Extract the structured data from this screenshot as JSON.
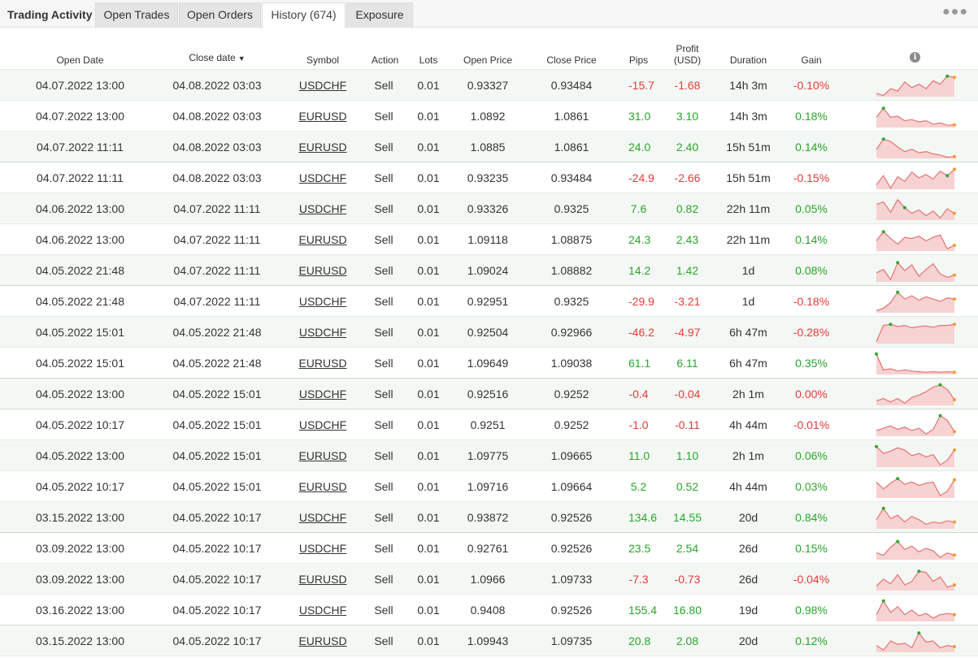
{
  "app_title": "Trading Activity",
  "tabs": [
    {
      "label": "Open Trades",
      "active": false
    },
    {
      "label": "Open Orders",
      "active": false
    },
    {
      "label": "History (674)",
      "active": true
    },
    {
      "label": "Exposure",
      "active": false
    }
  ],
  "menu_icon": "more-dots-icon",
  "columns": {
    "open_date": "Open Date",
    "close_date": "Close date",
    "close_date_sort": "▼",
    "symbol": "Symbol",
    "action": "Action",
    "lots": "Lots",
    "open_price": "Open Price",
    "close_price": "Close Price",
    "pips": "Pips",
    "profit_l1": "Profit",
    "profit_l2": "(USD)",
    "duration": "Duration",
    "gain": "Gain",
    "info": "i"
  },
  "colors": {
    "negative": "#e23b3b",
    "positive": "#2aa52a",
    "spark_line": "#e57373",
    "spark_fill": "#f6d2d2",
    "spark_start": "#2eaa2e",
    "spark_end": "#f29a2e"
  },
  "rows": [
    {
      "open": "04.07.2022 13:00",
      "close": "04.08.2022 03:03",
      "symbol": "USDCHF",
      "action": "Sell",
      "lots": "0.01",
      "open_price": "0.93327",
      "close_price": "0.93484",
      "pips": "-15.7",
      "profit": "-1.68",
      "duration": "14h 3m",
      "gain": "-0.10%",
      "spark": [
        0.15,
        0.05,
        0.35,
        0.25,
        0.65,
        0.4,
        0.55,
        0.35,
        0.7,
        0.55,
        0.9,
        0.85
      ],
      "spark_start": 10,
      "spark_end": 11
    },
    {
      "open": "04.07.2022 13:00",
      "close": "04.08.2022 03:03",
      "symbol": "EURUSD",
      "action": "Sell",
      "lots": "0.01",
      "open_price": "1.0892",
      "close_price": "1.0861",
      "pips": "31.0",
      "profit": "3.10",
      "duration": "14h 3m",
      "gain": "0.18%",
      "spark": [
        0.45,
        0.85,
        0.45,
        0.5,
        0.3,
        0.35,
        0.25,
        0.3,
        0.15,
        0.2,
        0.1,
        0.12
      ],
      "spark_start": 1,
      "spark_end": 11
    },
    {
      "open": "04.07.2022 11:11",
      "close": "04.08.2022 03:03",
      "symbol": "EURUSD",
      "action": "Sell",
      "lots": "0.01",
      "open_price": "1.0885",
      "close_price": "1.0861",
      "pips": "24.0",
      "profit": "2.40",
      "duration": "15h 51m",
      "gain": "0.14%",
      "spark": [
        0.4,
        0.85,
        0.75,
        0.5,
        0.3,
        0.4,
        0.25,
        0.3,
        0.2,
        0.15,
        0.05,
        0.08
      ],
      "spark_start": 1,
      "spark_end": 11
    },
    {
      "open": "04.07.2022 11:11",
      "close": "04.08.2022 03:03",
      "symbol": "USDCHF",
      "action": "Sell",
      "lots": "0.01",
      "open_price": "0.93235",
      "close_price": "0.93484",
      "pips": "-24.9",
      "profit": "-2.66",
      "duration": "15h 51m",
      "gain": "-0.15%",
      "spark": [
        0.2,
        0.6,
        0.05,
        0.55,
        0.35,
        0.75,
        0.5,
        0.65,
        0.45,
        0.8,
        0.6,
        0.88
      ],
      "spark_start": 10,
      "spark_end": 11
    },
    {
      "open": "04.06.2022 13:00",
      "close": "04.07.2022 11:11",
      "symbol": "USDCHF",
      "action": "Sell",
      "lots": "0.01",
      "open_price": "0.93326",
      "close_price": "0.9325",
      "pips": "7.6",
      "profit": "0.82",
      "duration": "22h 11m",
      "gain": "0.05%",
      "spark": [
        0.7,
        0.8,
        0.35,
        0.9,
        0.55,
        0.3,
        0.45,
        0.2,
        0.4,
        0.1,
        0.5,
        0.3
      ],
      "spark_start": 4,
      "spark_end": 11
    },
    {
      "open": "04.06.2022 13:00",
      "close": "04.07.2022 11:11",
      "symbol": "EURUSD",
      "action": "Sell",
      "lots": "0.01",
      "open_price": "1.09118",
      "close_price": "1.08875",
      "pips": "24.3",
      "profit": "2.43",
      "duration": "22h 11m",
      "gain": "0.14%",
      "spark": [
        0.45,
        0.85,
        0.55,
        0.3,
        0.6,
        0.55,
        0.65,
        0.45,
        0.6,
        0.7,
        0.1,
        0.25
      ],
      "spark_start": 1,
      "spark_end": 11
    },
    {
      "open": "04.05.2022 21:48",
      "close": "04.07.2022 11:11",
      "symbol": "EURUSD",
      "action": "Sell",
      "lots": "0.01",
      "open_price": "1.09024",
      "close_price": "1.08882",
      "pips": "14.2",
      "profit": "1.42",
      "duration": "1d",
      "gain": "0.08%",
      "spark": [
        0.4,
        0.55,
        0.1,
        0.85,
        0.5,
        0.75,
        0.25,
        0.55,
        0.8,
        0.35,
        0.2,
        0.3
      ],
      "spark_start": 3,
      "spark_end": 11
    },
    {
      "open": "04.05.2022 21:48",
      "close": "04.07.2022 11:11",
      "symbol": "USDCHF",
      "action": "Sell",
      "lots": "0.01",
      "open_price": "0.92951",
      "close_price": "0.9325",
      "pips": "-29.9",
      "profit": "-3.21",
      "duration": "1d",
      "gain": "-0.18%",
      "spark": [
        0.1,
        0.2,
        0.45,
        0.9,
        0.6,
        0.75,
        0.55,
        0.7,
        0.6,
        0.5,
        0.65,
        0.6
      ],
      "spark_start": 3,
      "spark_end": 11
    },
    {
      "open": "04.05.2022 15:01",
      "close": "04.05.2022 21:48",
      "symbol": "USDCHF",
      "action": "Sell",
      "lots": "0.01",
      "open_price": "0.92504",
      "close_price": "0.92966",
      "pips": "-46.2",
      "profit": "-4.97",
      "duration": "6h 47m",
      "gain": "-0.28%",
      "spark": [
        0.1,
        0.8,
        0.85,
        0.75,
        0.8,
        0.7,
        0.75,
        0.78,
        0.72,
        0.8,
        0.8,
        0.85
      ],
      "spark_start": 2,
      "spark_end": 11
    },
    {
      "open": "04.05.2022 15:01",
      "close": "04.05.2022 21:48",
      "symbol": "EURUSD",
      "action": "Sell",
      "lots": "0.01",
      "open_price": "1.09649",
      "close_price": "1.09038",
      "pips": "61.1",
      "profit": "6.11",
      "duration": "6h 47m",
      "gain": "0.35%",
      "spark": [
        0.9,
        0.2,
        0.25,
        0.15,
        0.2,
        0.15,
        0.12,
        0.1,
        0.12,
        0.1,
        0.12,
        0.1
      ],
      "spark_start": 0,
      "spark_end": 11
    },
    {
      "open": "04.05.2022 13:00",
      "close": "04.05.2022 15:01",
      "symbol": "USDCHF",
      "action": "Sell",
      "lots": "0.01",
      "open_price": "0.92516",
      "close_price": "0.9252",
      "pips": "-0.4",
      "profit": "-0.04",
      "duration": "2h 1m",
      "gain": "0.00%",
      "spark": [
        0.2,
        0.3,
        0.15,
        0.3,
        0.1,
        0.35,
        0.45,
        0.6,
        0.8,
        0.9,
        0.7,
        0.25
      ],
      "spark_start": 9,
      "spark_end": 11
    },
    {
      "open": "04.05.2022 10:17",
      "close": "04.05.2022 15:01",
      "symbol": "USDCHF",
      "action": "Sell",
      "lots": "0.01",
      "open_price": "0.9251",
      "close_price": "0.9252",
      "pips": "-1.0",
      "profit": "-0.11",
      "duration": "4h 44m",
      "gain": "-0.01%",
      "spark": [
        0.25,
        0.35,
        0.45,
        0.3,
        0.4,
        0.25,
        0.35,
        0.1,
        0.3,
        0.9,
        0.7,
        0.2
      ],
      "spark_start": 9,
      "spark_end": 11
    },
    {
      "open": "04.05.2022 13:00",
      "close": "04.05.2022 15:01",
      "symbol": "EURUSD",
      "action": "Sell",
      "lots": "0.01",
      "open_price": "1.09775",
      "close_price": "1.09665",
      "pips": "11.0",
      "profit": "1.10",
      "duration": "2h 1m",
      "gain": "0.06%",
      "spark": [
        0.9,
        0.6,
        0.7,
        0.85,
        0.75,
        0.5,
        0.6,
        0.45,
        0.55,
        0.1,
        0.3,
        0.75
      ],
      "spark_start": 0,
      "spark_end": 11
    },
    {
      "open": "04.05.2022 10:17",
      "close": "04.05.2022 15:01",
      "symbol": "EURUSD",
      "action": "Sell",
      "lots": "0.01",
      "open_price": "1.09716",
      "close_price": "1.09664",
      "pips": "5.2",
      "profit": "0.52",
      "duration": "4h 44m",
      "gain": "0.03%",
      "spark": [
        0.7,
        0.4,
        0.65,
        0.85,
        0.6,
        0.7,
        0.55,
        0.65,
        0.7,
        0.1,
        0.3,
        0.8
      ],
      "spark_start": 3,
      "spark_end": 11
    },
    {
      "open": "03.15.2022 13:00",
      "close": "04.05.2022 10:17",
      "symbol": "USDCHF",
      "action": "Sell",
      "lots": "0.01",
      "open_price": "0.93872",
      "close_price": "0.92526",
      "pips": "134.6",
      "profit": "14.55",
      "duration": "20d",
      "gain": "0.84%",
      "spark": [
        0.4,
        0.9,
        0.45,
        0.6,
        0.3,
        0.55,
        0.4,
        0.2,
        0.3,
        0.25,
        0.35,
        0.3
      ],
      "spark_start": 1,
      "spark_end": 11
    },
    {
      "open": "03.09.2022 13:00",
      "close": "04.05.2022 10:17",
      "symbol": "USDCHF",
      "action": "Sell",
      "lots": "0.01",
      "open_price": "0.92761",
      "close_price": "0.92526",
      "pips": "23.5",
      "profit": "2.54",
      "duration": "26d",
      "gain": "0.15%",
      "spark": [
        0.3,
        0.2,
        0.55,
        0.8,
        0.45,
        0.6,
        0.35,
        0.5,
        0.4,
        0.1,
        0.3,
        0.2
      ],
      "spark_start": 3,
      "spark_end": 11
    },
    {
      "open": "03.09.2022 13:00",
      "close": "04.05.2022 10:17",
      "symbol": "EURUSD",
      "action": "Sell",
      "lots": "0.01",
      "open_price": "1.0966",
      "close_price": "1.09733",
      "pips": "-7.3",
      "profit": "-0.73",
      "duration": "26d",
      "gain": "-0.04%",
      "spark": [
        0.2,
        0.5,
        0.3,
        0.7,
        0.25,
        0.4,
        0.85,
        0.8,
        0.4,
        0.6,
        0.15,
        0.25
      ],
      "spark_start": 6,
      "spark_end": 11
    },
    {
      "open": "03.16.2022 13:00",
      "close": "04.05.2022 10:17",
      "symbol": "USDCHF",
      "action": "Sell",
      "lots": "0.01",
      "open_price": "0.9408",
      "close_price": "0.92526",
      "pips": "155.4",
      "profit": "16.80",
      "duration": "19d",
      "gain": "0.98%",
      "spark": [
        0.3,
        0.9,
        0.4,
        0.65,
        0.3,
        0.5,
        0.25,
        0.35,
        0.15,
        0.3,
        0.35,
        0.3
      ],
      "spark_start": 1,
      "spark_end": 11
    },
    {
      "open": "03.15.2022 13:00",
      "close": "04.05.2022 10:17",
      "symbol": "EURUSD",
      "action": "Sell",
      "lots": "0.01",
      "open_price": "1.09943",
      "close_price": "1.09735",
      "pips": "20.8",
      "profit": "2.08",
      "duration": "20d",
      "gain": "0.12%",
      "spark": [
        0.3,
        0.1,
        0.5,
        0.35,
        0.4,
        0.2,
        0.85,
        0.45,
        0.5,
        0.2,
        0.3,
        0.25
      ],
      "spark_start": 6,
      "spark_end": 11
    }
  ]
}
